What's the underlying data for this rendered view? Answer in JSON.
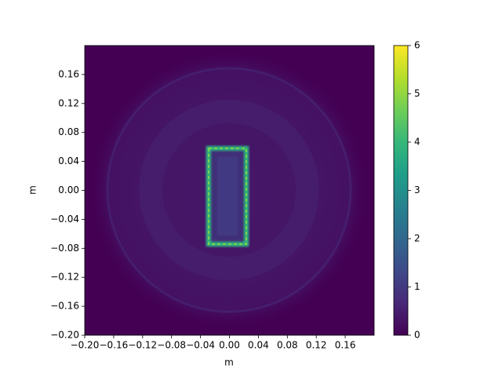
{
  "chart_data": {
    "type": "image",
    "xlabel": "m",
    "ylabel": "m",
    "xlim": [
      -0.2,
      0.2
    ],
    "ylim": [
      -0.2,
      0.2
    ],
    "xticks": [
      {
        "value": -0.2,
        "label": "−0.20"
      },
      {
        "value": -0.16,
        "label": "−0.16"
      },
      {
        "value": -0.12,
        "label": "−0.12"
      },
      {
        "value": -0.08,
        "label": "−0.08"
      },
      {
        "value": -0.04,
        "label": "−0.04"
      },
      {
        "value": 0,
        "label": "0.00"
      },
      0.04,
      0.08,
      0.12,
      0.16
    ],
    "yticks": [
      {
        "value": -0.2,
        "label": "−0.20"
      },
      {
        "value": -0.16,
        "label": "−0.16"
      },
      {
        "value": -0.12,
        "label": "−0.12"
      },
      {
        "value": -0.08,
        "label": "−0.08"
      },
      {
        "value": -0.04,
        "label": "−0.04"
      },
      {
        "value": 0,
        "label": "0.00"
      },
      0.04,
      0.08,
      0.12,
      0.16
    ],
    "colormap": "viridis",
    "clim": [
      0,
      6
    ],
    "cticks": [
      0,
      1,
      2,
      3,
      4,
      5,
      6
    ]
  }
}
